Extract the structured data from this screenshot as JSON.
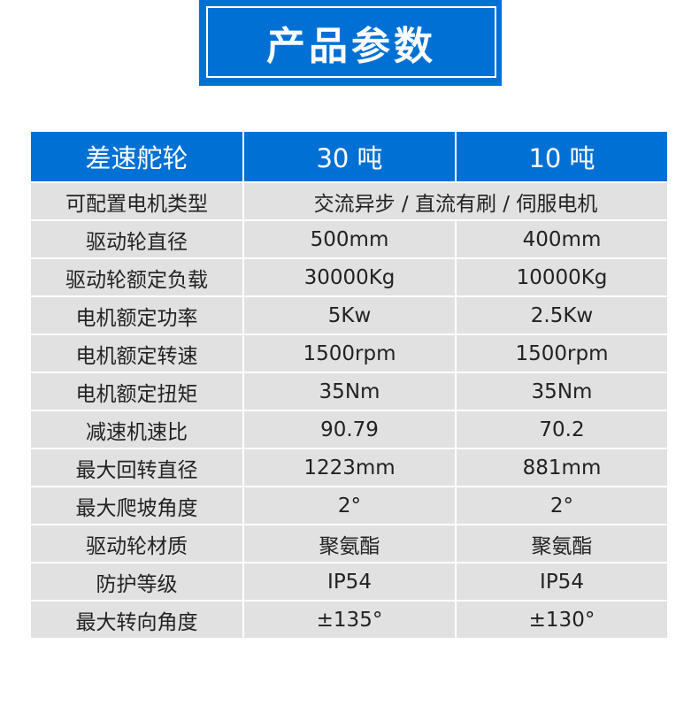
{
  "title": "产品参数",
  "header": [
    "差速舵轮",
    "30 吨",
    "10 吨"
  ],
  "motor_type": {
    "label": "可配置电机类型",
    "value": "交流异步 / 直流有刷 / 伺服电机"
  },
  "rows": [
    [
      "驱动轮直径",
      "500mm",
      "400mm"
    ],
    [
      "驱动轮额定负载",
      "30000Kg",
      "10000Kg"
    ],
    [
      "电机额定功率",
      "5Kw",
      "2.5Kw"
    ],
    [
      "电机额定转速",
      "1500rpm",
      "1500rpm"
    ],
    [
      "电机额定扭矩",
      "35Nm",
      "35Nm"
    ],
    [
      "减速机速比",
      "90.79",
      "70.2"
    ],
    [
      "最大回转直径",
      "1223mm",
      "881mm"
    ],
    [
      "最大爬坡角度",
      "2°",
      "2°"
    ],
    [
      "驱动轮材质",
      "聚氨酯",
      "聚氨酯"
    ],
    [
      "防护等级",
      "IP54",
      "IP54"
    ],
    [
      "最大转向角度",
      "±135°",
      "±130°"
    ]
  ],
  "colors": {
    "accent": "#0070d4",
    "row": "#e1e1e1"
  }
}
